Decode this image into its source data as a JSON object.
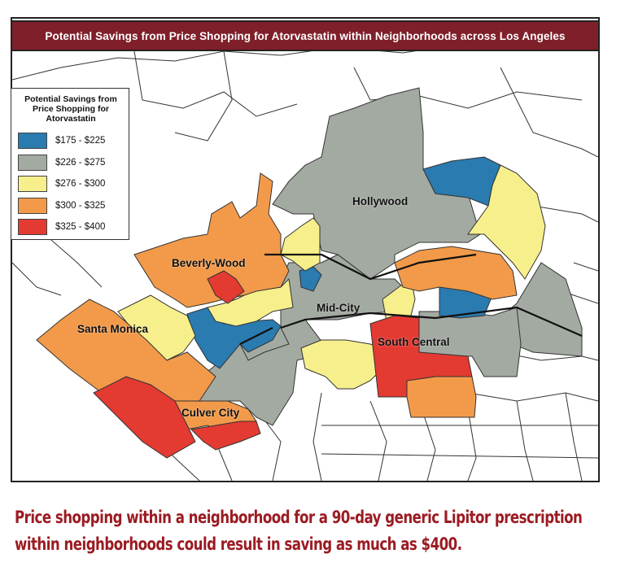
{
  "title": "Potential Savings from Price Shopping for Atorvastatin within Neighborhoods across Los Angeles",
  "legend": {
    "title": "Potential Savings from Price Shopping for Atorvastatin",
    "items": [
      {
        "label": "$175 - $225",
        "color": "#2a7bb0"
      },
      {
        "label": "$226 - $275",
        "color": "#a3aaa2"
      },
      {
        "label": "$276 - $300",
        "color": "#f7ef8c"
      },
      {
        "label": "$300 - $325",
        "color": "#f29a4a"
      },
      {
        "label": "$325 - $400",
        "color": "#e33a32"
      }
    ]
  },
  "places": {
    "hollywood": "Hollywood",
    "beverly_wood": "Beverly-Wood",
    "mid_city": "Mid-City",
    "santa_monica": "Santa Monica",
    "south_central": "South Central",
    "culver_city": "Culver City"
  },
  "caption": {
    "line1": "Price shopping within a neighborhood for a 90-day generic Lipitor prescription",
    "line2": "within neighborhoods could result in saving as much as $400."
  }
}
